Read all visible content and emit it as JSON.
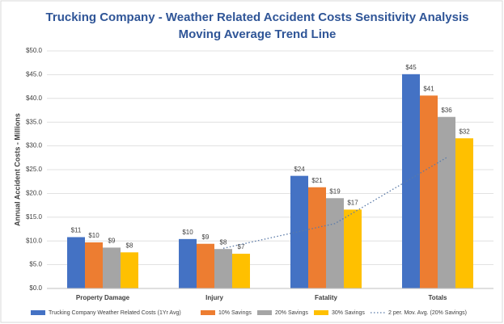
{
  "chart_data": {
    "type": "bar",
    "title": "Trucking Company - Weather Related Accident Costs Sensitivity Analysis",
    "subtitle": "Moving Average Trend Line",
    "y_label": "Annual Accident Costs - Millions",
    "categories": [
      "Property Damage",
      "Injury",
      "Fatality",
      "Totals"
    ],
    "series": [
      {
        "name": "Trucking Company Weather Related Costs (1Yr Avg)",
        "color": "#4472c4",
        "values": [
          10.8,
          10.4,
          23.7,
          45.1
        ],
        "value_labels": [
          "$11",
          "$10",
          "$24",
          "$45"
        ]
      },
      {
        "name": "10% Savings",
        "color": "#ed7d31",
        "values": [
          9.7,
          9.4,
          21.3,
          40.6
        ],
        "value_labels": [
          "$10",
          "$9",
          "$21",
          "$41"
        ]
      },
      {
        "name": "20% Savings",
        "color": "#a5a5a5",
        "values": [
          8.6,
          8.3,
          19.0,
          36.1
        ],
        "value_labels": [
          "$9",
          "$8",
          "$19",
          "$36"
        ]
      },
      {
        "name": "30% Savings",
        "color": "#ffc000",
        "values": [
          7.6,
          7.3,
          16.6,
          31.6
        ],
        "value_labels": [
          "$8",
          "$7",
          "$17",
          "$32"
        ]
      }
    ],
    "trend": {
      "name": "2 per. Mov. Avg. (20% Savings)",
      "color": "#5a7aa8",
      "values": [
        null,
        8.45,
        13.65,
        27.55
      ]
    },
    "ylim": [
      0,
      50
    ],
    "yticks": [
      {
        "value": 0,
        "label": "$0.0"
      },
      {
        "value": 5,
        "label": "$5.0"
      },
      {
        "value": 10,
        "label": "$10.0"
      },
      {
        "value": 15,
        "label": "$15.0"
      },
      {
        "value": 20,
        "label": "$20.0"
      },
      {
        "value": 25,
        "label": "$25.0"
      },
      {
        "value": 30,
        "label": "$30.0"
      },
      {
        "value": 35,
        "label": "$35.0"
      },
      {
        "value": 40,
        "label": "$40.0"
      },
      {
        "value": 45,
        "label": "$45.0"
      },
      {
        "value": 50,
        "label": "$50.0"
      }
    ],
    "grid": true,
    "legend": "bottom"
  }
}
